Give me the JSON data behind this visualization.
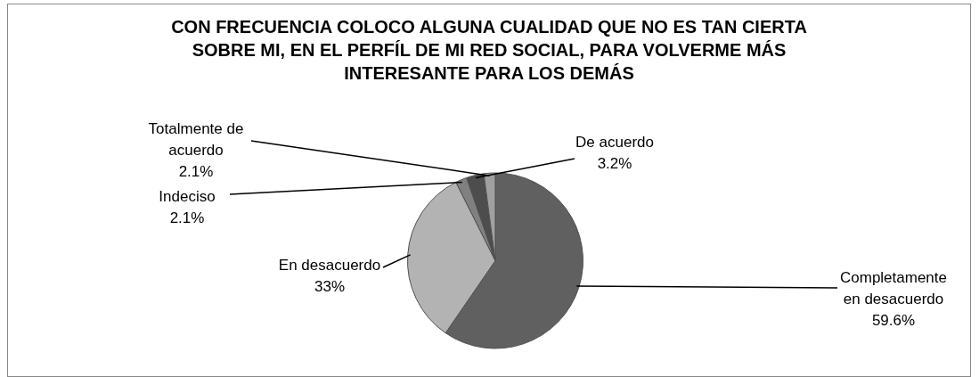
{
  "chart_data": {
    "type": "pie",
    "title": "CON FRECUENCIA COLOCO ALGUNA CUALIDAD QUE NO ES TAN CIERTA SOBRE MI, EN EL PERFÍL DE MI RED SOCIAL, PARA VOLVERME MÁS INTERESANTE PARA LOS DEMÁS",
    "categories": [
      "Completamente en desacuerdo",
      "En desacuerdo",
      "Indeciso",
      "De acuerdo",
      "Totalmente de acuerdo"
    ],
    "values": [
      59.6,
      33,
      2.1,
      3.2,
      2.1
    ],
    "value_labels": [
      "59.6%",
      "33%",
      "2.1%",
      "3.2%",
      "2.1%"
    ],
    "colors": [
      "#606060",
      "#b3b3b3",
      "#808080",
      "#4d4d4d",
      "#a0a0a0"
    ],
    "legend": false
  }
}
